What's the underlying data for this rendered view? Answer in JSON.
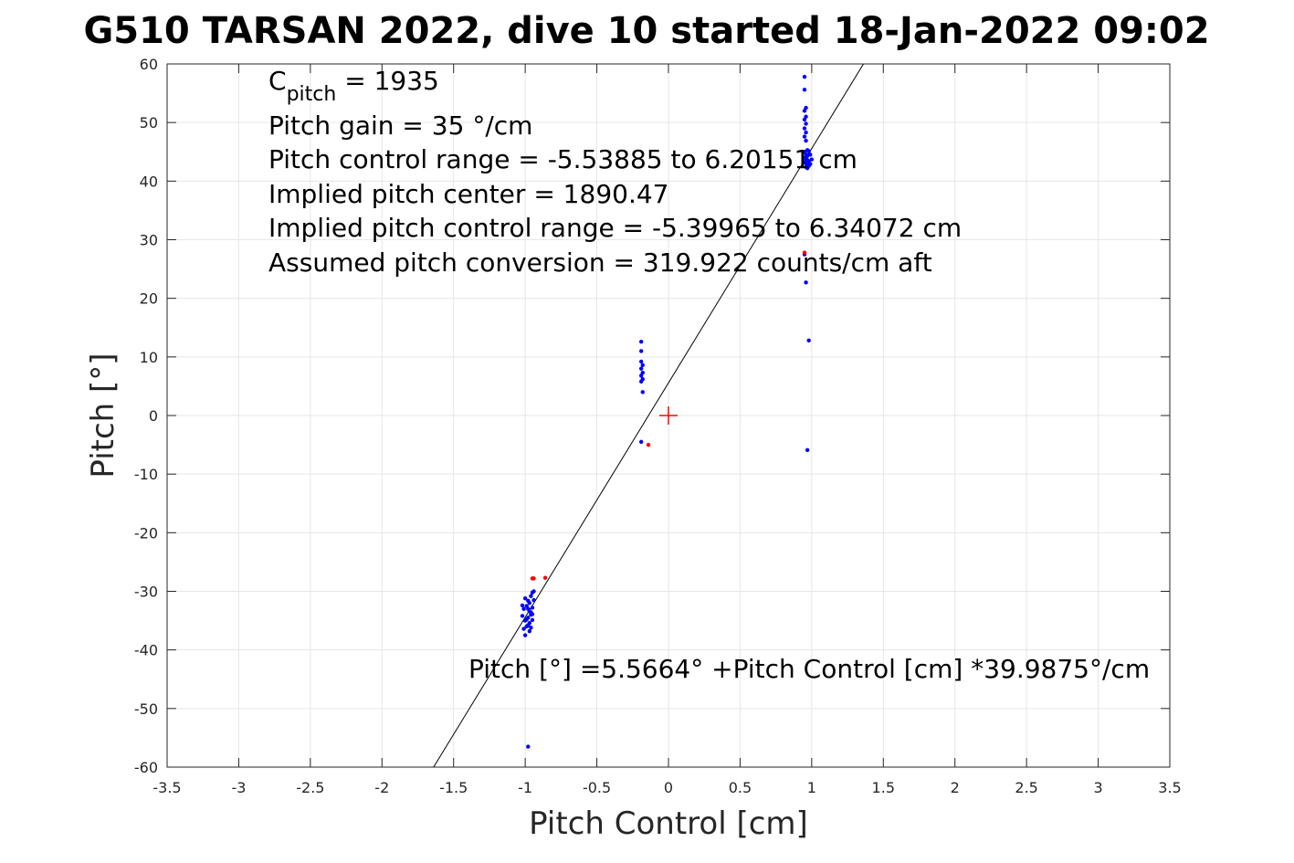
{
  "chart_data": {
    "type": "scatter",
    "title": "G510 TARSAN 2022, dive 10 started 18-Jan-2022 09:02",
    "xlabel": "Pitch Control [cm]",
    "ylabel": "Pitch [°]",
    "xlim": [
      -3.5,
      3.5
    ],
    "ylim": [
      -60,
      60
    ],
    "xticks": [
      -3.5,
      -3,
      -2.5,
      -2,
      -1.5,
      -1,
      -0.5,
      0,
      0.5,
      1,
      1.5,
      2,
      2.5,
      3,
      3.5
    ],
    "xtick_labels": [
      "-3.5",
      "-3",
      "-2.5",
      "-2",
      "-1.5",
      "-1",
      "-0.5",
      "0",
      "0.5",
      "1",
      "1.5",
      "2",
      "2.5",
      "3",
      "3.5"
    ],
    "yticks": [
      -60,
      -50,
      -40,
      -30,
      -20,
      -10,
      0,
      10,
      20,
      30,
      40,
      50,
      60
    ],
    "ytick_labels": [
      "-60",
      "-50",
      "-40",
      "-30",
      "-20",
      "-10",
      "0",
      "10",
      "20",
      "30",
      "40",
      "50",
      "60"
    ],
    "grid": true,
    "annotations": {
      "c_pitch_main": "C",
      "c_pitch_sub": "pitch",
      "c_pitch_value": " = 1935",
      "pitch_gain": "Pitch gain = 35 °/cm",
      "control_range": "Pitch control range = -5.53885 to 6.20151 cm",
      "implied_center": "Implied pitch center = 1890.47",
      "implied_range": "Implied pitch control range = -5.39965 to 6.34072 cm",
      "assumed_conversion": "Assumed pitch conversion = 319.922 counts/cm aft",
      "fit_equation": "Pitch [°] =5.5664° +Pitch Control [cm] *39.9875°/cm"
    },
    "fit_line": {
      "intercept": 5.5664,
      "slope": 39.9875,
      "color": "#000000"
    },
    "center_marker": {
      "x": 0,
      "y": 0,
      "color": "#ff0000"
    },
    "series": [
      {
        "color": "#0000ff",
        "points": [
          [
            0.95,
            57.8
          ],
          [
            0.95,
            55.6
          ],
          [
            0.96,
            52.5
          ],
          [
            0.95,
            52.0
          ],
          [
            0.96,
            51.0
          ],
          [
            0.95,
            50.5
          ],
          [
            0.96,
            49.8
          ],
          [
            0.95,
            49.0
          ],
          [
            0.96,
            48.3
          ],
          [
            0.95,
            47.6
          ],
          [
            0.96,
            46.9
          ],
          [
            0.95,
            45.0
          ],
          [
            0.96,
            44.6
          ],
          [
            0.97,
            44.3
          ],
          [
            0.95,
            44.0
          ],
          [
            0.96,
            43.8
          ],
          [
            0.97,
            43.6
          ],
          [
            0.98,
            43.4
          ],
          [
            0.95,
            43.2
          ],
          [
            0.96,
            43.0
          ],
          [
            0.97,
            42.8
          ],
          [
            0.98,
            42.6
          ],
          [
            0.96,
            42.4
          ],
          [
            0.97,
            42.2
          ],
          [
            0.99,
            42.9
          ],
          [
            1.0,
            43.7
          ],
          [
            0.99,
            44.5
          ],
          [
            0.98,
            45.1
          ],
          [
            0.97,
            45.3
          ],
          [
            0.96,
            22.7
          ],
          [
            0.98,
            12.8
          ],
          [
            0.97,
            -5.9
          ],
          [
            0.95,
            27.5
          ],
          [
            -0.19,
            12.6
          ],
          [
            -0.19,
            11.0
          ],
          [
            -0.19,
            9.2
          ],
          [
            -0.18,
            8.6
          ],
          [
            -0.19,
            8.0
          ],
          [
            -0.18,
            7.3
          ],
          [
            -0.19,
            6.8
          ],
          [
            -0.18,
            6.2
          ],
          [
            -0.19,
            5.8
          ],
          [
            -0.18,
            4.0
          ],
          [
            -0.19,
            -4.5
          ],
          [
            -0.98,
            -56.5
          ],
          [
            -1.0,
            -31.2
          ],
          [
            -0.98,
            -31.6
          ],
          [
            -0.96,
            -30.8
          ],
          [
            -0.95,
            -30.2
          ],
          [
            -0.97,
            -32.0
          ],
          [
            -0.99,
            -32.5
          ],
          [
            -1.01,
            -33.0
          ],
          [
            -0.97,
            -33.4
          ],
          [
            -0.95,
            -32.8
          ],
          [
            -0.96,
            -34.0
          ],
          [
            -0.98,
            -34.5
          ],
          [
            -1.0,
            -35.0
          ],
          [
            -1.02,
            -34.2
          ],
          [
            -0.97,
            -35.4
          ],
          [
            -0.95,
            -34.9
          ],
          [
            -0.99,
            -36.0
          ],
          [
            -1.01,
            -36.4
          ],
          [
            -0.97,
            -36.8
          ],
          [
            -1.0,
            -37.5
          ],
          [
            -0.96,
            -33.6
          ],
          [
            -0.98,
            -33.0
          ],
          [
            -0.94,
            -31.5
          ],
          [
            -0.95,
            -33.9
          ],
          [
            -1.02,
            -32.4
          ],
          [
            -0.98,
            -35.8
          ],
          [
            -0.96,
            -36.2
          ],
          [
            -0.99,
            -34.8
          ],
          [
            -0.94,
            -30.0
          ]
        ]
      },
      {
        "color": "#ff0000",
        "points": [
          [
            -0.95,
            -27.8
          ],
          [
            -0.94,
            -27.8
          ],
          [
            -0.86,
            -27.7
          ],
          [
            -0.14,
            -5.0
          ],
          [
            0.95,
            27.8
          ]
        ]
      }
    ]
  }
}
